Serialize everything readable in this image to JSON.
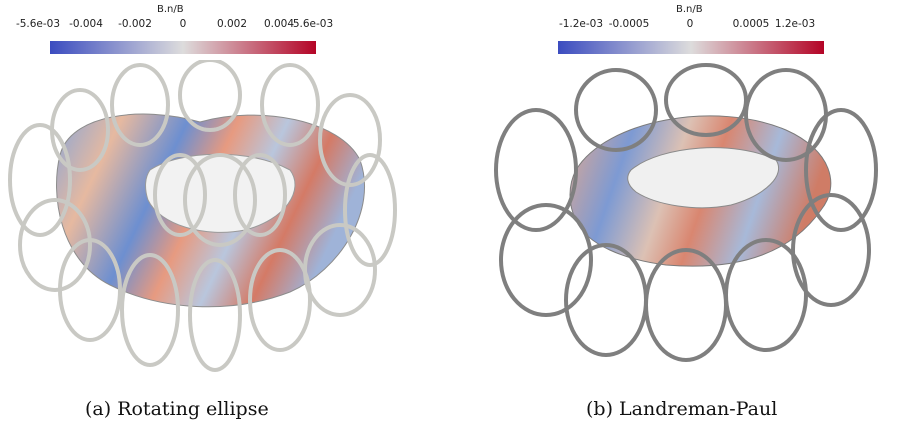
{
  "panels": [
    {
      "colorbar": {
        "title": "B.n/B",
        "ticks": [
          "-5.6e-03",
          "-0.004",
          "-0.002",
          "0",
          "0.002",
          "0.004",
          "5.6e-03"
        ],
        "colors": [
          "#3b4cc0",
          "#dddcdc",
          "#b40426"
        ]
      },
      "caption": "(a) Rotating ellipse"
    },
    {
      "colorbar": {
        "title": "B.n/B",
        "ticks": [
          "-1.2e-03",
          "-0.0005",
          "0",
          "0.0005",
          "1.2e-03"
        ],
        "colors": [
          "#3b4cc0",
          "#dddcdc",
          "#b40426"
        ]
      },
      "caption": "(b) Landreman-Paul"
    }
  ]
}
